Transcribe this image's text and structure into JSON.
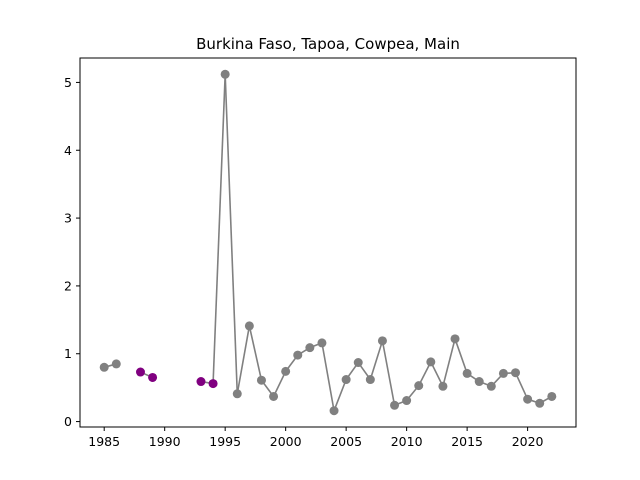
{
  "chart_data": {
    "type": "line",
    "title": "Burkina Faso, Tapoa, Cowpea, Main",
    "xlabel": "",
    "ylabel": "",
    "xlim": [
      1983,
      2024
    ],
    "ylim": [
      -0.08,
      5.36
    ],
    "xticks": [
      1985,
      1990,
      1995,
      2000,
      2005,
      2010,
      2015,
      2020
    ],
    "yticks": [
      0,
      1,
      2,
      3,
      4,
      5
    ],
    "grid": false,
    "legend": "none",
    "line_color": "#808080",
    "highlight_color": "#800080",
    "points": [
      {
        "x": 1985,
        "y": 0.8,
        "highlight": false
      },
      {
        "x": 1986,
        "y": 0.85,
        "highlight": false
      },
      {
        "x": 1988,
        "y": 0.73,
        "highlight": true
      },
      {
        "x": 1989,
        "y": 0.65,
        "highlight": true
      },
      {
        "x": 1993,
        "y": 0.59,
        "highlight": true
      },
      {
        "x": 1994,
        "y": 0.56,
        "highlight": true
      },
      {
        "x": 1995,
        "y": 5.12,
        "highlight": false
      },
      {
        "x": 1996,
        "y": 0.41,
        "highlight": false
      },
      {
        "x": 1997,
        "y": 1.41,
        "highlight": false
      },
      {
        "x": 1998,
        "y": 0.61,
        "highlight": false
      },
      {
        "x": 1999,
        "y": 0.37,
        "highlight": false
      },
      {
        "x": 2000,
        "y": 0.74,
        "highlight": false
      },
      {
        "x": 2001,
        "y": 0.98,
        "highlight": false
      },
      {
        "x": 2002,
        "y": 1.09,
        "highlight": false
      },
      {
        "x": 2003,
        "y": 1.16,
        "highlight": false
      },
      {
        "x": 2004,
        "y": 0.16,
        "highlight": false
      },
      {
        "x": 2005,
        "y": 0.62,
        "highlight": false
      },
      {
        "x": 2006,
        "y": 0.87,
        "highlight": false
      },
      {
        "x": 2007,
        "y": 0.62,
        "highlight": false
      },
      {
        "x": 2008,
        "y": 1.19,
        "highlight": false
      },
      {
        "x": 2009,
        "y": 0.24,
        "highlight": false
      },
      {
        "x": 2010,
        "y": 0.31,
        "highlight": false
      },
      {
        "x": 2011,
        "y": 0.53,
        "highlight": false
      },
      {
        "x": 2012,
        "y": 0.88,
        "highlight": false
      },
      {
        "x": 2013,
        "y": 0.52,
        "highlight": false
      },
      {
        "x": 2014,
        "y": 1.22,
        "highlight": false
      },
      {
        "x": 2015,
        "y": 0.71,
        "highlight": false
      },
      {
        "x": 2016,
        "y": 0.59,
        "highlight": false
      },
      {
        "x": 2017,
        "y": 0.52,
        "highlight": false
      },
      {
        "x": 2018,
        "y": 0.71,
        "highlight": false
      },
      {
        "x": 2019,
        "y": 0.72,
        "highlight": false
      },
      {
        "x": 2020,
        "y": 0.33,
        "highlight": false
      },
      {
        "x": 2021,
        "y": 0.27,
        "highlight": false
      },
      {
        "x": 2022,
        "y": 0.37,
        "highlight": false
      }
    ]
  }
}
